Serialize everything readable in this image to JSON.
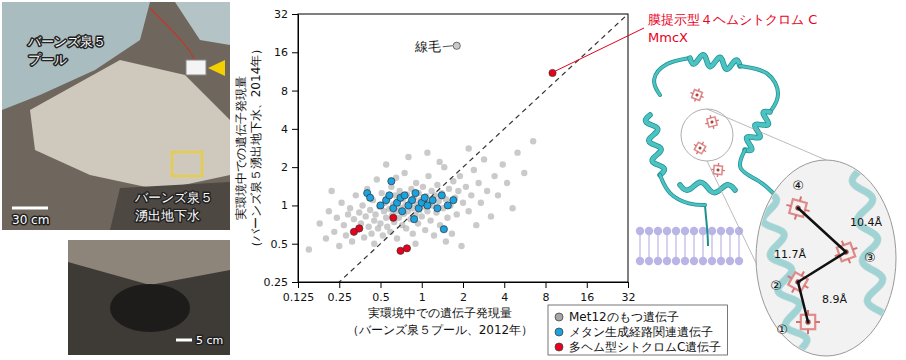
{
  "chart_data": {
    "type": "scatter",
    "xlabel": [
      "実環境中での遺伝子発現量",
      "（バーンズ泉５プール、2012年）"
    ],
    "ylabel": [
      "実環境中での遺伝子発現量",
      "（バーンズ泉５湧出地下水、2014年）"
    ],
    "log": true,
    "grid": false,
    "legend": "bottom-right",
    "marker": "circle",
    "xlim": [
      0.125,
      32
    ],
    "ylim": [
      0.25,
      32
    ],
    "xticks": [
      0.125,
      0.25,
      0.5,
      1,
      2,
      4,
      8,
      16,
      32
    ],
    "yticks": [
      0.25,
      0.5,
      1,
      2,
      4,
      8,
      16,
      32
    ],
    "series": [
      {
        "name": "Met12のもつ遺伝子",
        "color": "#a6a6a6",
        "x": [
          0.18,
          0.2,
          0.21,
          0.23,
          0.24,
          0.25,
          0.26,
          0.27,
          0.28,
          0.29,
          0.3,
          0.31,
          0.32,
          0.33,
          0.34,
          0.35,
          0.36,
          0.37,
          0.38,
          0.39,
          0.4,
          0.41,
          0.42,
          0.43,
          0.44,
          0.45,
          0.46,
          0.47,
          0.48,
          0.49,
          0.5,
          0.51,
          0.52,
          0.53,
          0.54,
          0.55,
          0.56,
          0.57,
          0.58,
          0.59,
          0.6,
          0.61,
          0.62,
          0.63,
          0.64,
          0.65,
          0.66,
          0.67,
          0.68,
          0.69,
          0.7,
          0.72,
          0.73,
          0.74,
          0.75,
          0.76,
          0.77,
          0.78,
          0.79,
          0.8,
          0.82,
          0.83,
          0.84,
          0.85,
          0.86,
          0.88,
          0.9,
          0.91,
          0.92,
          0.94,
          0.95,
          0.96,
          0.98,
          1.0,
          1.02,
          1.04,
          1.06,
          1.08,
          1.1,
          1.12,
          1.14,
          1.16,
          1.18,
          1.2,
          1.23,
          1.25,
          1.28,
          1.3,
          1.33,
          1.36,
          1.4,
          1.43,
          1.46,
          1.5,
          1.54,
          1.58,
          1.62,
          1.66,
          1.7,
          1.75,
          1.8,
          1.85,
          1.9,
          1.95,
          2.0,
          2.1,
          2.2,
          2.3,
          2.4,
          2.5,
          2.6,
          2.7,
          2.85,
          3.0,
          3.2,
          3.4,
          3.6,
          3.9,
          4.2,
          4.6,
          5.0,
          5.6,
          0.15,
          0.22,
          0.55,
          0.65,
          1.1,
          1.35,
          2.2,
          0.9,
          1.5,
          0.45,
          6.5,
          1.8
        ],
        "values": [
          0.72,
          0.55,
          0.9,
          0.62,
          0.8,
          0.48,
          1.05,
          0.7,
          0.58,
          0.85,
          0.95,
          0.52,
          0.78,
          1.2,
          0.64,
          0.88,
          0.72,
          1.0,
          0.56,
          0.82,
          1.35,
          0.68,
          0.92,
          0.6,
          1.1,
          0.76,
          0.85,
          1.6,
          0.66,
          0.98,
          0.72,
          1.25,
          0.58,
          0.9,
          1.05,
          0.8,
          0.68,
          1.15,
          0.94,
          0.62,
          1.4,
          0.84,
          1.02,
          0.74,
          1.2,
          0.9,
          0.55,
          1.08,
          0.8,
          1.3,
          0.95,
          0.7,
          1.12,
          0.86,
          1.8,
          1.0,
          0.66,
          1.22,
          0.9,
          2.4,
          1.05,
          0.78,
          1.35,
          0.95,
          0.6,
          1.15,
          0.85,
          1.5,
          1.02,
          0.72,
          1.25,
          0.92,
          1.1,
          0.82,
          1.4,
          0.98,
          0.64,
          1.18,
          0.9,
          1.7,
          1.05,
          0.76,
          1.3,
          1.0,
          0.58,
          1.2,
          0.88,
          1.45,
          1.08,
          0.7,
          1.25,
          0.95,
          2.0,
          1.12,
          0.8,
          1.35,
          1.0,
          0.6,
          1.55,
          1.15,
          0.85,
          1.3,
          1.7,
          0.48,
          1.05,
          1.4,
          0.9,
          1.2,
          1.9,
          0.7,
          1.5,
          1.05,
          2.3,
          1.3,
          0.82,
          1.7,
          1.2,
          2.1,
          1.5,
          0.95,
          2.6,
          1.8,
          0.45,
          1.3,
          2.1,
          1.65,
          2.6,
          2.2,
          2.8,
          0.5,
          0.52,
          0.5,
          3.2,
          18
        ]
      },
      {
        "name": "メタン生成経路関連遺伝子",
        "color": "#1aa3e0",
        "x": [
          0.4,
          0.42,
          0.5,
          0.55,
          0.58,
          0.62,
          0.66,
          0.7,
          0.72,
          0.75,
          0.8,
          0.85,
          0.9,
          0.95,
          1.0,
          1.05,
          1.1,
          1.2,
          1.3,
          1.4,
          1.55,
          1.7,
          1.45,
          0.6,
          0.88
        ],
        "values": [
          1.25,
          1.15,
          1.0,
          1.1,
          1.2,
          0.95,
          1.05,
          1.15,
          0.9,
          1.2,
          1.0,
          1.1,
          1.25,
          0.95,
          1.05,
          1.15,
          1.0,
          1.1,
          0.95,
          1.2,
          1.0,
          1.1,
          0.65,
          1.55,
          0.78
        ]
      },
      {
        "name": "多ヘム型シトクロムC遺伝子",
        "color": "#e8001c",
        "x": [
          0.32,
          0.35,
          0.7,
          0.78,
          0.62,
          9
        ],
        "values": [
          0.62,
          0.66,
          0.44,
          0.46,
          0.8,
          11
        ]
      }
    ],
    "reference_line": {
      "x": [
        0.125,
        32
      ],
      "values": [
        0.125,
        32
      ],
      "line_style": "dashed"
    },
    "annotations": [
      {
        "text": "線毛",
        "x": 1.8,
        "y": 18
      },
      {
        "text": [
          "膜提示型４ヘムシトクロム C",
          "MmcX"
        ],
        "x": 9,
        "y": 11,
        "color": "#e8001c"
      }
    ]
  },
  "photos": {
    "pool": [
      "バーンズ泉５",
      "プール"
    ],
    "groundwater": [
      "バーンズ泉５",
      "湧出地下水"
    ],
    "scale_top": "30 cm",
    "scale_bottom": "5 cm"
  },
  "structure": {
    "hemes": [
      "①",
      "②",
      "③",
      "④"
    ],
    "distances": [
      "8.9Å",
      "11.7Å",
      "10.4Å"
    ]
  }
}
